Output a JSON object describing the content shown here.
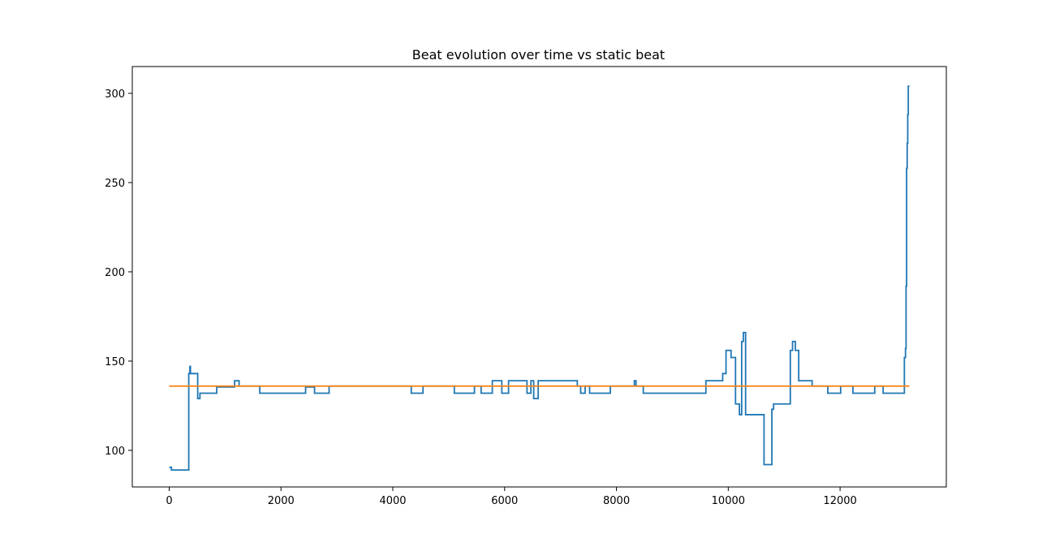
{
  "chart_data": {
    "type": "line",
    "title": "Beat evolution over time vs static beat",
    "xlabel": "",
    "ylabel": "",
    "xlim": [
      -660,
      13900
    ],
    "ylim": [
      79.5,
      315
    ],
    "xticks": [
      0,
      2000,
      4000,
      6000,
      8000,
      10000,
      12000
    ],
    "yticks": [
      100,
      150,
      200,
      250,
      300
    ],
    "grid": false,
    "legend": "none",
    "series": [
      {
        "color": "#1f77b4",
        "step": true,
        "x": [
          0,
          40,
          350,
          370,
          380,
          400,
          430,
          510,
          550,
          850,
          1170,
          1250,
          1620,
          2440,
          2600,
          2860,
          3880,
          4330,
          4540,
          5100,
          5460,
          5580,
          5780,
          5950,
          6070,
          6400,
          6470,
          6520,
          6600,
          7040,
          7300,
          7360,
          7440,
          7520,
          7890,
          8320,
          8350,
          8480,
          9530,
          9600,
          9700,
          9800,
          9900,
          9960,
          10050,
          10130,
          10200,
          10240,
          10270,
          10310,
          10400,
          10480,
          10560,
          10640,
          10780,
          10810,
          10880,
          11110,
          11150,
          11200,
          11260,
          11500,
          11780,
          12010,
          12230,
          12620,
          12770,
          13150,
          13170,
          13180,
          13190,
          13200,
          13210,
          13220,
          13230,
          13240
        ],
        "y": [
          90.5,
          89,
          143,
          147,
          143,
          143,
          143,
          129,
          132,
          135.5,
          139,
          136,
          132,
          135.5,
          132,
          136,
          136,
          132,
          136,
          132,
          136,
          132,
          139,
          132,
          139,
          132,
          139,
          129,
          139,
          139,
          136,
          132,
          136,
          132,
          136,
          139,
          136,
          132,
          132,
          139,
          139,
          139,
          143,
          156,
          152,
          126,
          120,
          161,
          166,
          120,
          120,
          120,
          120,
          92,
          123,
          126,
          126,
          156,
          161,
          156,
          139,
          136,
          132,
          136,
          132,
          136,
          132,
          152,
          157,
          192,
          258,
          272,
          288,
          304,
          304,
          304
        ]
      },
      {
        "color": "#ff7f0e",
        "step": false,
        "x": [
          0,
          13240
        ],
        "y": [
          136,
          136
        ]
      }
    ]
  }
}
